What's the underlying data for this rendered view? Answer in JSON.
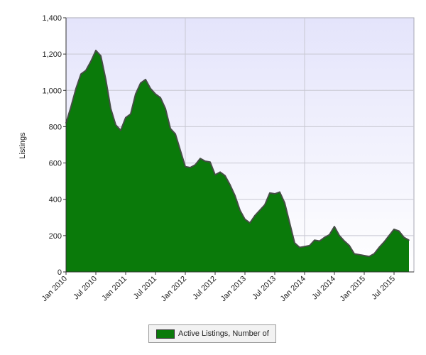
{
  "chart_data": {
    "type": "area",
    "title": "",
    "xlabel": "",
    "ylabel": "Listings",
    "ylim": [
      0,
      1400
    ],
    "y_ticks": [
      "0",
      "200",
      "400",
      "600",
      "800",
      "1,000",
      "1,200",
      "1,400"
    ],
    "x_ticks": [
      "Jan 2010",
      "Jul 2010",
      "Jan 2011",
      "Jul 2011",
      "Jan 2012",
      "Jul 2012",
      "Jan 2013",
      "Jul 2013",
      "Jan 2014",
      "Jul 2014",
      "Jan 2015",
      "Jul 2015"
    ],
    "x_start": "Jan 2010",
    "x_end": "Dec 2015",
    "grid": true,
    "legend_position": "bottom-center",
    "series": [
      {
        "name": "Active Listings, Number of",
        "color": "#0a7a0a",
        "values": [
          820,
          910,
          1010,
          1090,
          1110,
          1160,
          1220,
          1190,
          1060,
          900,
          810,
          780,
          850,
          870,
          980,
          1040,
          1060,
          1010,
          980,
          960,
          900,
          790,
          760,
          670,
          580,
          575,
          590,
          625,
          610,
          605,
          535,
          550,
          530,
          480,
          420,
          340,
          290,
          270,
          310,
          340,
          370,
          435,
          430,
          440,
          380,
          270,
          160,
          135,
          140,
          145,
          175,
          170,
          190,
          205,
          250,
          200,
          170,
          145,
          100,
          95,
          90,
          85,
          100,
          135,
          165,
          200,
          235,
          225,
          190,
          175
        ]
      }
    ]
  },
  "colors": {
    "plot_background_top": "#e4e4fb",
    "plot_background_bottom": "#ffffff",
    "area_fill": "#0a7a0a",
    "area_line": "#464e46",
    "grid": "#c8c8d2"
  }
}
